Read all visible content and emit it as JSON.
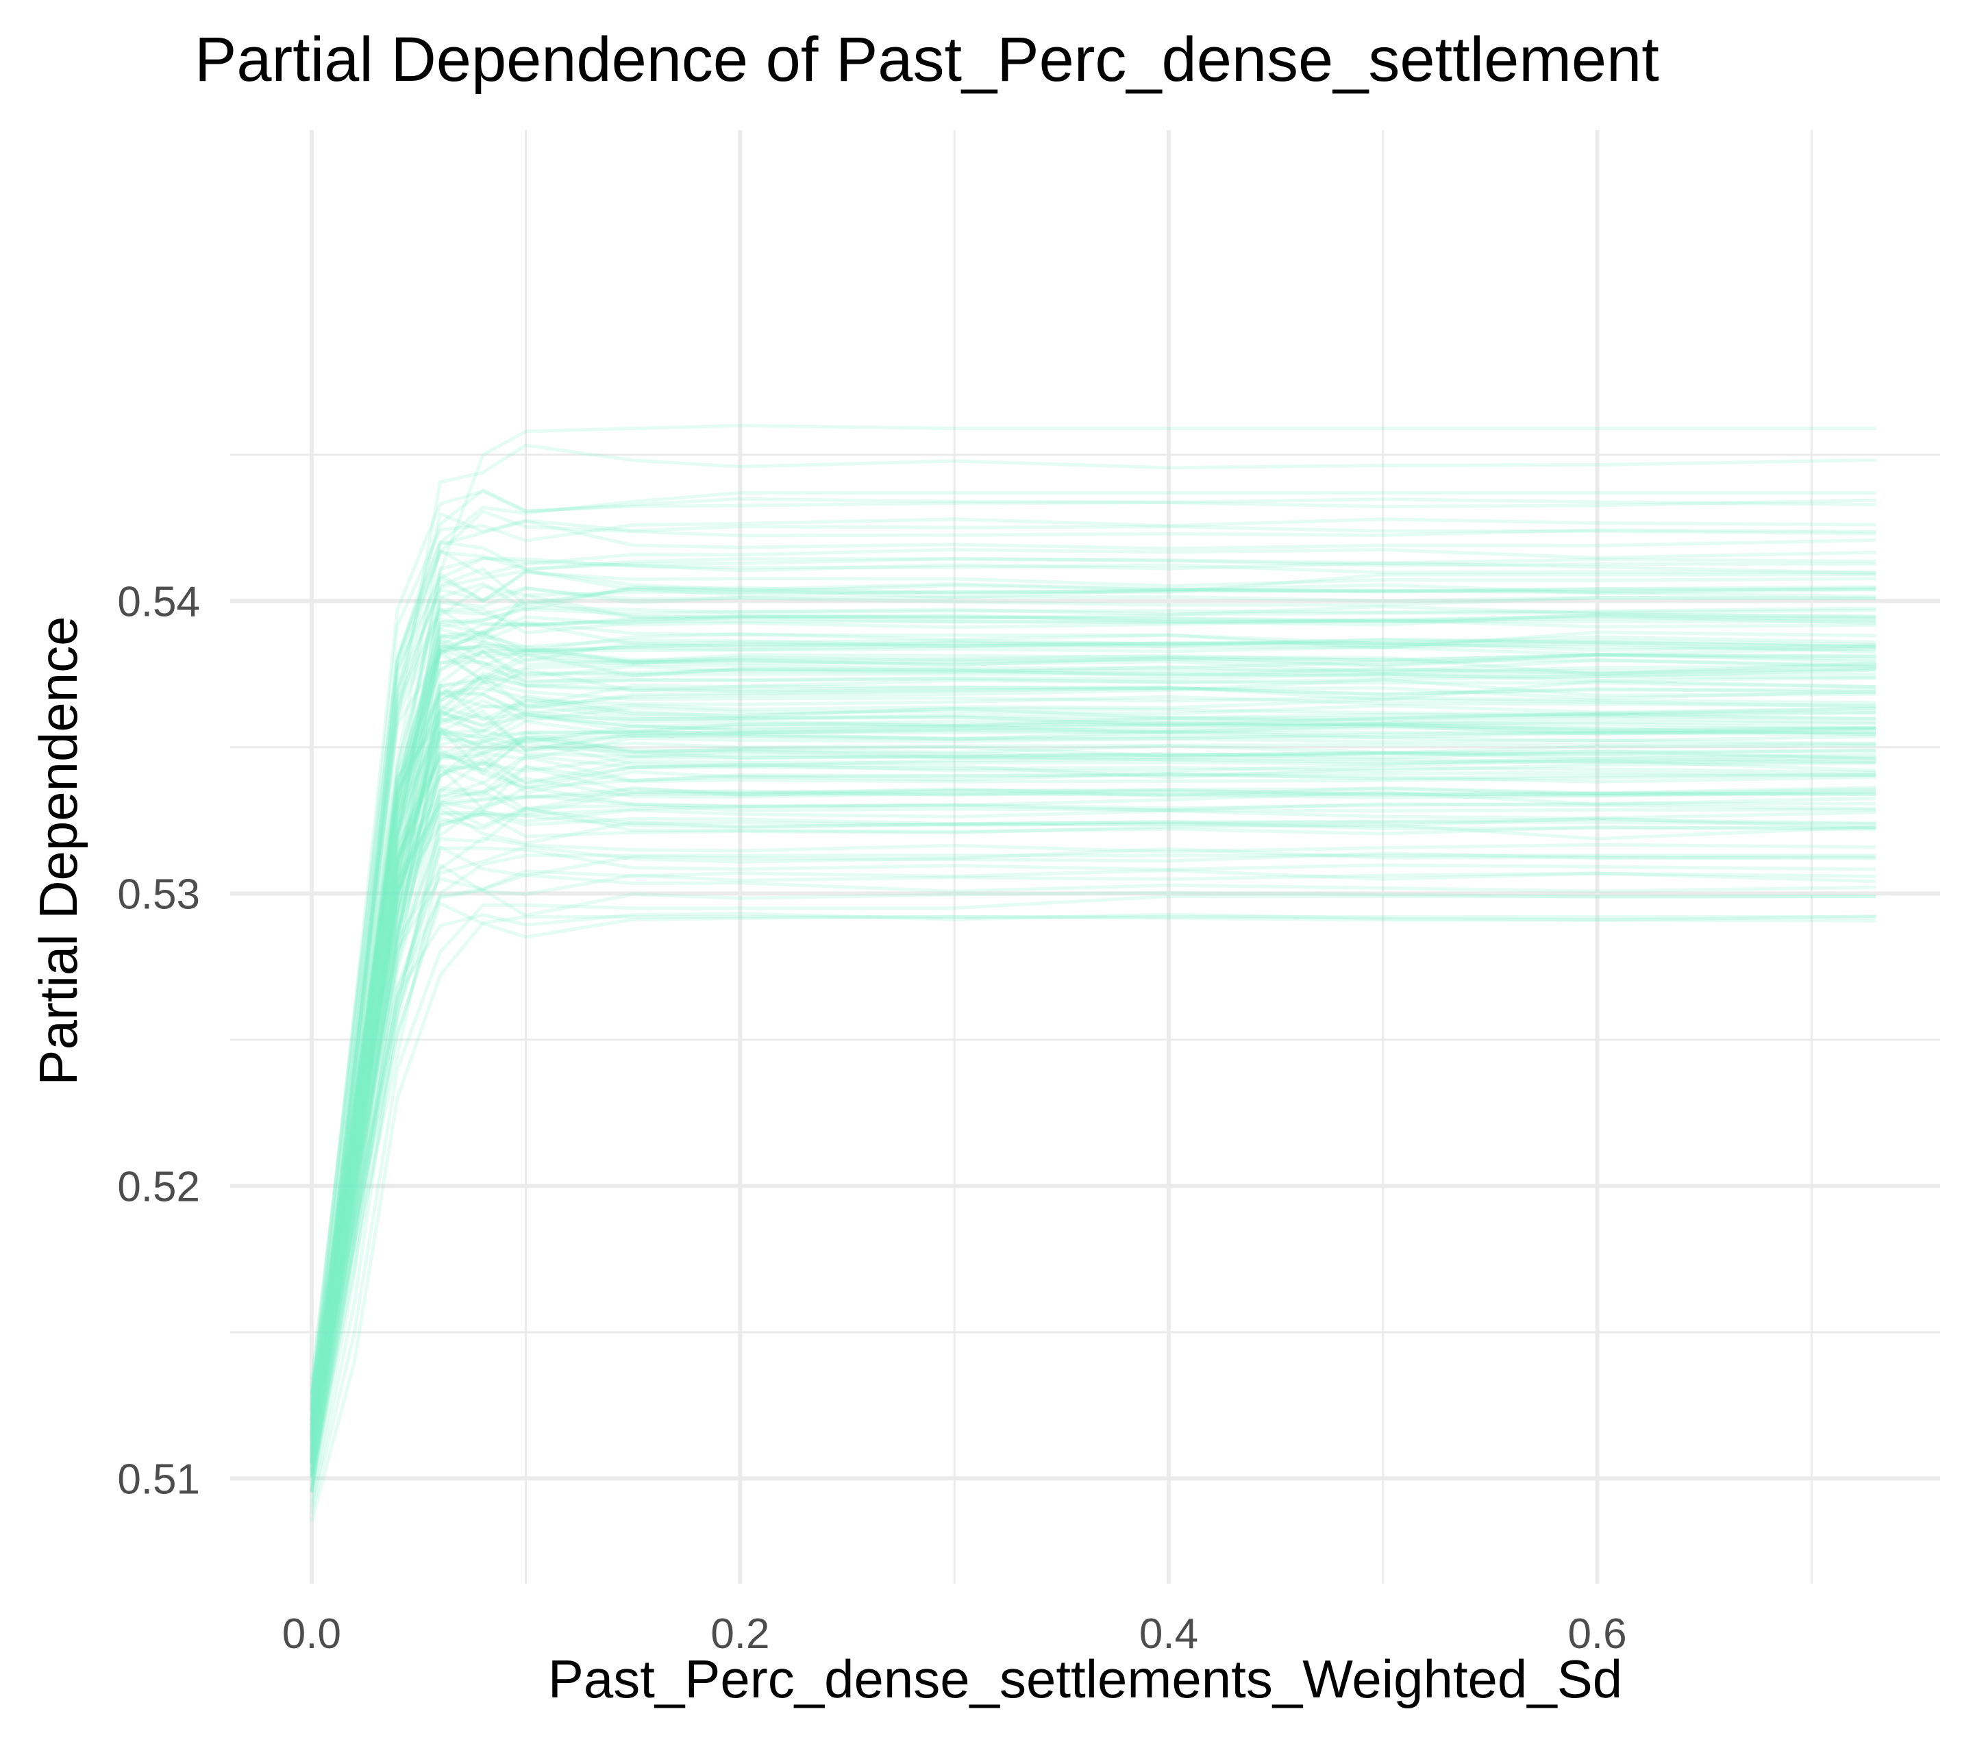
{
  "chart_data": {
    "type": "line",
    "title": "Partial Dependence of Past_Perc_dense_settlement",
    "xlabel": "Past_Perc_dense_settlements_Weighted_Sd",
    "ylabel": "Partial Dependence",
    "xlim": [
      -0.038,
      0.76
    ],
    "ylim": [
      0.5064,
      0.5561
    ],
    "x_ticks": [
      0.0,
      0.2,
      0.4,
      0.6
    ],
    "x_tick_labels": [
      "0.0",
      "0.2",
      "0.4",
      "0.6"
    ],
    "y_ticks": [
      0.51,
      0.52,
      0.53,
      0.54
    ],
    "y_tick_labels": [
      "0.51",
      "0.52",
      "0.53",
      "0.54"
    ],
    "x_minor_ticks": [
      0.1,
      0.3,
      0.5,
      0.7
    ],
    "y_minor_ticks": [
      0.515,
      0.525,
      0.535,
      0.545
    ],
    "grid": true,
    "legend": "none",
    "line_color": "#7EEFC8",
    "line_opacity": 0.2,
    "series_description": "About 120 ICE curves that rise steeply from roughly 0.509–0.514 at x = 0 to a plateau near x = 0.09 and then stay flat out to x ≈ 0.73.",
    "x": [
      0.0,
      0.02,
      0.04,
      0.06,
      0.08,
      0.1,
      0.15,
      0.2,
      0.3,
      0.4,
      0.5,
      0.6,
      0.73
    ],
    "plateau_range": [
      0.5292,
      0.5459
    ],
    "start_range": [
      0.5085,
      0.5138
    ],
    "curve_count": 120,
    "representative_series": [
      {
        "values": [
          0.5115,
          0.5225,
          0.537,
          0.541,
          0.545,
          0.5458,
          0.5459,
          0.546,
          0.5459,
          0.5459,
          0.5459,
          0.5459,
          0.5459
        ]
      },
      {
        "values": [
          0.5125,
          0.523,
          0.538,
          0.542,
          0.5432,
          0.543,
          0.5434,
          0.5437,
          0.5437,
          0.5437,
          0.5437,
          0.5437,
          0.5437
        ]
      },
      {
        "values": [
          0.511,
          0.5215,
          0.536,
          0.5395,
          0.5405,
          0.5402,
          0.5403,
          0.5403,
          0.5403,
          0.5403,
          0.5409,
          0.5409,
          0.5409
        ]
      },
      {
        "values": [
          0.5105,
          0.52,
          0.534,
          0.5385,
          0.5392,
          0.5392,
          0.5393,
          0.5393,
          0.5393,
          0.5393,
          0.5393,
          0.5393,
          0.5393
        ]
      },
      {
        "values": [
          0.51,
          0.519,
          0.532,
          0.536,
          0.5372,
          0.5375,
          0.5375,
          0.5375,
          0.5375,
          0.5375,
          0.5375,
          0.5375,
          0.5375
        ]
      },
      {
        "values": [
          0.5095,
          0.518,
          0.53,
          0.534,
          0.5352,
          0.5355,
          0.5355,
          0.5355,
          0.5355,
          0.5355,
          0.5355,
          0.5355,
          0.5355
        ]
      },
      {
        "values": [
          0.5092,
          0.517,
          0.528,
          0.532,
          0.533,
          0.5333,
          0.5334,
          0.5334,
          0.5334,
          0.5334,
          0.5334,
          0.5334,
          0.5334
        ]
      },
      {
        "values": [
          0.509,
          0.516,
          0.526,
          0.53,
          0.531,
          0.5313,
          0.5313,
          0.5313,
          0.5313,
          0.5313,
          0.5313,
          0.5313,
          0.5313
        ]
      },
      {
        "values": [
          0.5088,
          0.515,
          0.524,
          0.528,
          0.5296,
          0.5296,
          0.5295,
          0.5295,
          0.5295,
          0.5299,
          0.5299,
          0.5299,
          0.5299
        ]
      },
      {
        "values": [
          0.5085,
          0.514,
          0.523,
          0.5272,
          0.529,
          0.5292,
          0.5292,
          0.5292,
          0.5292,
          0.5292,
          0.5292,
          0.5292,
          0.5292
        ]
      }
    ]
  }
}
